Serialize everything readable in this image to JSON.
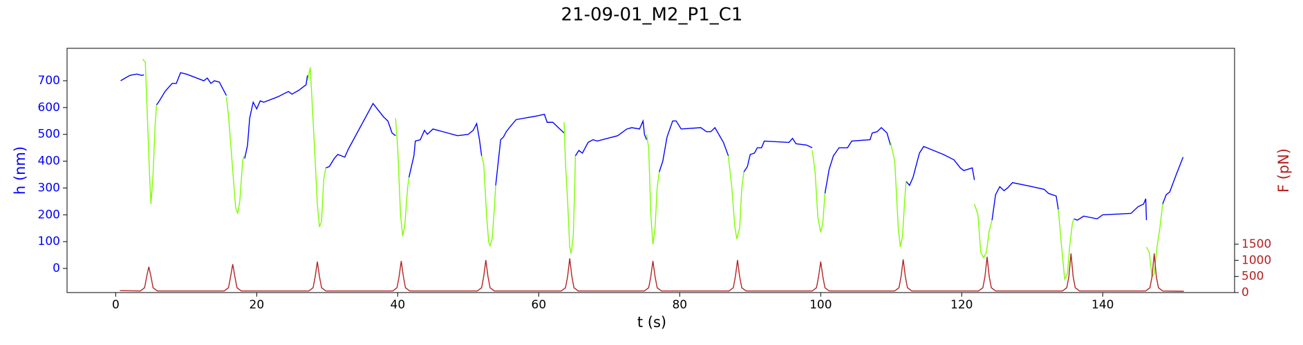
{
  "chart_data": {
    "type": "line",
    "title": "21-09-01_M2_P1_C1",
    "xlabel": "t (s)",
    "ylabel": "h (nm)",
    "y2label": "F (pN)",
    "ycolor": "#0000ff",
    "y2color": "#b22222",
    "xlim": [
      -6.9,
      158.7
    ],
    "ylim": [
      -90,
      821
    ],
    "y2lim": [
      0,
      7580
    ],
    "xticks": [
      0,
      20,
      40,
      60,
      80,
      100,
      120,
      140
    ],
    "yticks": [
      0,
      100,
      200,
      300,
      400,
      500,
      600,
      700
    ],
    "y2ticks": [
      0,
      500,
      1000,
      1500
    ],
    "series": [
      {
        "color": "#0000ff",
        "x": [
          0.7,
          2,
          3,
          3.7,
          4.0,
          null,
          5.8,
          6.2,
          7,
          8,
          8.6,
          9.2,
          10,
          11,
          12.5,
          13,
          13.5,
          14,
          14.7,
          15.7,
          null,
          18.3,
          18.7,
          19,
          19.5,
          20,
          20.5,
          21,
          23,
          24.5,
          25,
          26,
          27,
          27.2,
          null,
          29.8,
          30.3,
          31,
          31.5,
          32.5,
          33,
          36.5,
          38,
          38.6,
          39.2,
          39.7,
          null,
          41.6,
          42.3,
          42.5,
          43.2,
          43.8,
          44.2,
          45,
          48.5,
          50,
          50.7,
          51.2,
          51.6,
          51.9,
          null,
          53.9,
          54.6,
          55,
          55.4,
          56,
          56.8,
          60,
          60.8,
          61.2,
          62,
          63,
          63.6,
          null,
          65.2,
          65.7,
          66.2,
          67,
          67.7,
          68.3,
          71.2,
          72.5,
          73.2,
          74.3,
          74.8,
          75,
          75.3,
          null,
          77.1,
          77.6,
          78.2,
          79,
          79.5,
          80.2,
          83,
          83.8,
          84.4,
          85,
          86.2,
          86.9,
          null,
          89.1,
          89.6,
          90,
          90.6,
          91,
          91.6,
          92,
          95.5,
          96,
          96.5,
          98,
          98.8,
          null,
          100.6,
          101.2,
          101.8,
          102.6,
          103.8,
          104.4,
          107,
          107.3,
          108,
          108.6,
          109.4,
          109.9,
          null,
          112.1,
          112.6,
          113.1,
          114,
          114.6,
          117.4,
          118.9,
          119.8,
          120.3,
          121.5,
          121.8,
          null,
          124.3,
          124.8,
          125.4,
          126,
          126.5,
          127.2,
          130,
          131.7,
          132.3,
          133.4,
          133.7,
          null,
          135.9,
          136.4,
          137.3,
          139.2,
          140,
          144,
          145,
          145.8,
          146.1,
          146.2,
          null,
          148.5,
          149,
          149.5,
          150.5,
          151.4
        ],
        "values": [
          700,
          720,
          725,
          720,
          722,
          null,
          610,
          625,
          660,
          690,
          690,
          730,
          725,
          715,
          700,
          710,
          690,
          700,
          695,
          645,
          null,
          410,
          460,
          560,
          620,
          595,
          625,
          620,
          640,
          660,
          650,
          665,
          685,
          720,
          null,
          375,
          380,
          410,
          425,
          415,
          445,
          615,
          565,
          550,
          505,
          495,
          null,
          340,
          420,
          475,
          480,
          515,
          500,
          520,
          495,
          500,
          515,
          540,
          480,
          420,
          null,
          310,
          480,
          490,
          510,
          530,
          555,
          570,
          575,
          545,
          545,
          520,
          505,
          null,
          420,
          440,
          430,
          470,
          480,
          475,
          495,
          520,
          525,
          520,
          550,
          500,
          480,
          null,
          360,
          400,
          490,
          550,
          550,
          520,
          525,
          510,
          510,
          525,
          470,
          420,
          null,
          360,
          380,
          425,
          430,
          450,
          450,
          475,
          470,
          485,
          465,
          460,
          450,
          null,
          280,
          370,
          420,
          450,
          450,
          475,
          480,
          505,
          510,
          525,
          505,
          460,
          null,
          325,
          310,
          340,
          430,
          455,
          425,
          405,
          375,
          365,
          375,
          330,
          null,
          180,
          275,
          305,
          290,
          300,
          320,
          305,
          295,
          280,
          270,
          220,
          null,
          185,
          180,
          195,
          185,
          200,
          205,
          230,
          240,
          260,
          180,
          null,
          240,
          275,
          285,
          355,
          415
        ]
      },
      {
        "color": "#7cfc00",
        "x": [
          3.8,
          4.2,
          4.8,
          5.0,
          5.3,
          5.6,
          5.8,
          null,
          15.7,
          16,
          16.5,
          17,
          17.3,
          17.6,
          18,
          18.2,
          null,
          27.2,
          27.6,
          27.9,
          28.3,
          28.6,
          28.9,
          29.2,
          29.5,
          29.8,
          null,
          39.7,
          40,
          40.4,
          40.7,
          41,
          41.4,
          41.6,
          null,
          51.9,
          52.2,
          52.6,
          52.9,
          53.1,
          53.4,
          53.7,
          53.9,
          null,
          63.6,
          63.8,
          64.1,
          64.4,
          64.6,
          64.9,
          65.1,
          65.2,
          null,
          75.3,
          75.6,
          75.9,
          76.2,
          76.5,
          76.8,
          77.1,
          null,
          86.9,
          87.4,
          87.8,
          88.1,
          88.5,
          88.8,
          89.1,
          null,
          98.8,
          99.2,
          99.6,
          100,
          100.3,
          100.6,
          null,
          109.9,
          110.5,
          111,
          111.3,
          111.6,
          111.9,
          112.1,
          null,
          121.8,
          122.3,
          122.7,
          123.1,
          123.5,
          123.9,
          124.3,
          null,
          133.7,
          134.1,
          134.6,
          135.0,
          135.3,
          135.7,
          135.9,
          null,
          146.2,
          146.6,
          147,
          147.3,
          147.7,
          148.1,
          148.5
        ],
        "values": [
          780,
          770,
          350,
          240,
          350,
          540,
          610,
          null,
          640,
          570,
          400,
          230,
          205,
          250,
          400,
          420,
          null,
          700,
          750,
          600,
          400,
          240,
          155,
          175,
          330,
          375,
          null,
          560,
          450,
          200,
          120,
          160,
          300,
          340,
          null,
          420,
          390,
          200,
          100,
          85,
          110,
          220,
          310,
          null,
          545,
          390,
          250,
          80,
          55,
          120,
          300,
          420,
          null,
          500,
          450,
          200,
          90,
          150,
          300,
          360,
          null,
          420,
          300,
          160,
          110,
          150,
          300,
          360,
          null,
          440,
          360,
          190,
          135,
          170,
          280,
          null,
          470,
          400,
          150,
          80,
          120,
          250,
          325,
          null,
          240,
          200,
          60,
          40,
          60,
          140,
          180,
          null,
          220,
          100,
          -40,
          -20,
          80,
          170,
          185,
          null,
          80,
          60,
          -30,
          -20,
          80,
          150,
          240
        ]
      },
      {
        "color": "#b22222",
        "axis": "y2",
        "x": [
          0.6,
          3.5,
          4.1,
          4.4,
          4.7,
          5.0,
          5.3,
          5.9,
          15.4,
          16.0,
          16.3,
          16.6,
          16.9,
          17.2,
          17.8,
          27.4,
          28.0,
          28.3,
          28.6,
          28.9,
          29.2,
          29.8,
          39.3,
          39.9,
          40.2,
          40.5,
          40.8,
          41.1,
          41.7,
          51.3,
          51.9,
          52.2,
          52.5,
          52.8,
          53.1,
          53.7,
          63.2,
          63.8,
          64.1,
          64.4,
          64.7,
          65.0,
          65.6,
          75.0,
          75.6,
          75.9,
          76.2,
          76.5,
          76.8,
          77.4,
          87.0,
          87.6,
          87.9,
          88.2,
          88.5,
          88.8,
          89.4,
          98.8,
          99.4,
          99.7,
          100.0,
          100.3,
          100.6,
          101.2,
          110.5,
          111.1,
          111.4,
          111.7,
          112.0,
          112.3,
          112.9,
          122.4,
          123.0,
          123.3,
          123.6,
          123.9,
          124.2,
          124.8,
          134.3,
          134.9,
          135.2,
          135.5,
          135.8,
          136.1,
          136.7,
          146.1,
          146.7,
          147.0,
          147.3,
          147.6,
          147.9,
          148.5,
          151.5
        ],
        "values": [
          60,
          50,
          150,
          500,
          800,
          500,
          150,
          50,
          50,
          150,
          500,
          880,
          500,
          150,
          50,
          50,
          150,
          500,
          960,
          500,
          150,
          50,
          50,
          150,
          500,
          980,
          500,
          150,
          50,
          50,
          150,
          500,
          1010,
          500,
          150,
          50,
          50,
          150,
          500,
          1060,
          500,
          150,
          50,
          50,
          150,
          500,
          980,
          500,
          150,
          50,
          50,
          150,
          500,
          1010,
          500,
          150,
          50,
          50,
          150,
          500,
          960,
          500,
          150,
          50,
          50,
          150,
          500,
          1030,
          500,
          150,
          50,
          50,
          150,
          500,
          1110,
          500,
          150,
          50,
          50,
          150,
          500,
          1215,
          500,
          150,
          50,
          50,
          150,
          500,
          1215,
          500,
          150,
          50,
          40
        ]
      }
    ]
  }
}
